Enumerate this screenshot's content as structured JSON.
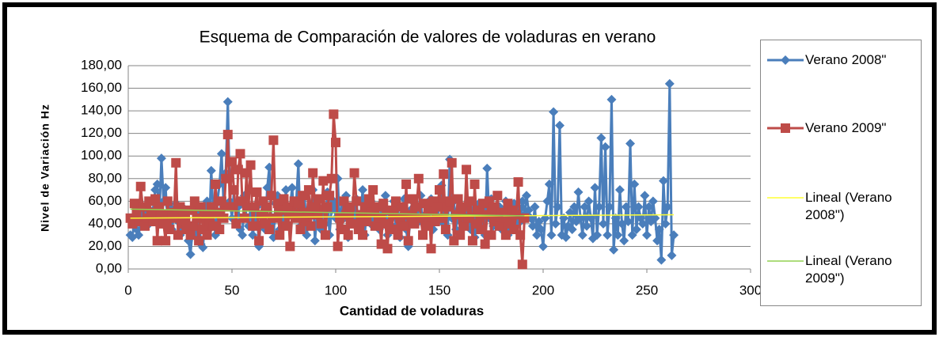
{
  "chart_data": {
    "type": "line",
    "title": "Esquema de Comparación de valores de voladuras en verano",
    "x_label": "Cantidad de voladuras",
    "y_label": "Nivel de Variación  Hz",
    "xlim": [
      0,
      300
    ],
    "xticks": [
      0,
      50,
      100,
      150,
      200,
      250,
      300
    ],
    "ylim": [
      0,
      180
    ],
    "yticks": [
      {
        "value": 0,
        "label": "0,00"
      },
      {
        "value": 20,
        "label": "20,00"
      },
      {
        "value": 40,
        "label": "40,00"
      },
      {
        "value": 60,
        "label": "60,00"
      },
      {
        "value": 80,
        "label": "80,00"
      },
      {
        "value": 100,
        "label": "100,00"
      },
      {
        "value": 120,
        "label": "120,00"
      },
      {
        "value": 140,
        "label": "140,00"
      },
      {
        "value": 160,
        "label": "160,00"
      },
      {
        "value": 180,
        "label": "180,00"
      }
    ],
    "grid": true,
    "legend": "right",
    "x": [
      1,
      2,
      3,
      4,
      5,
      6,
      7,
      8,
      9,
      10,
      11,
      12,
      13,
      14,
      15,
      16,
      17,
      18,
      19,
      20,
      21,
      22,
      23,
      24,
      25,
      26,
      27,
      28,
      29,
      30,
      31,
      32,
      33,
      34,
      35,
      36,
      37,
      38,
      39,
      40,
      41,
      42,
      43,
      44,
      45,
      46,
      47,
      48,
      49,
      50,
      51,
      52,
      53,
      54,
      55,
      56,
      57,
      58,
      59,
      60,
      61,
      62,
      63,
      64,
      65,
      66,
      67,
      68,
      69,
      70,
      71,
      72,
      73,
      74,
      75,
      76,
      77,
      78,
      79,
      80,
      81,
      82,
      83,
      84,
      85,
      86,
      87,
      88,
      89,
      90,
      91,
      92,
      93,
      94,
      95,
      96,
      97,
      98,
      99,
      100,
      101,
      102,
      103,
      104,
      105,
      106,
      107,
      108,
      109,
      110,
      111,
      112,
      113,
      114,
      115,
      116,
      117,
      118,
      119,
      120,
      121,
      122,
      123,
      124,
      125,
      126,
      127,
      128,
      129,
      130,
      131,
      132,
      133,
      134,
      135,
      136,
      137,
      138,
      139,
      140,
      141,
      142,
      143,
      144,
      145,
      146,
      147,
      148,
      149,
      150,
      151,
      152,
      153,
      154,
      155,
      156,
      157,
      158,
      159,
      160,
      161,
      162,
      163,
      164,
      165,
      166,
      167,
      168,
      169,
      170,
      171,
      172,
      173,
      174,
      175,
      176,
      177,
      178,
      179,
      180,
      181,
      182,
      183,
      184,
      185,
      186,
      187,
      188,
      189,
      190,
      191,
      192,
      193,
      194,
      195,
      196,
      197,
      198,
      199,
      200,
      201,
      202,
      203,
      204,
      205,
      206,
      207,
      208,
      209,
      210,
      211,
      212,
      213,
      214,
      215,
      216,
      217,
      218,
      219,
      220,
      221,
      222,
      223,
      224,
      225,
      226,
      227,
      228,
      229,
      230,
      231,
      232,
      233,
      234,
      235,
      236,
      237,
      238,
      239,
      240,
      241,
      242,
      243,
      244,
      245,
      246,
      247,
      248,
      249,
      250,
      251,
      252,
      253,
      254,
      255,
      256,
      257,
      258,
      259,
      260,
      261,
      262,
      263
    ],
    "series": [
      {
        "name": "Verano 2008\"",
        "color": "#4a7ebb",
        "marker": "diamond",
        "values": [
          30,
          28,
          45,
          35,
          30,
          42,
          55,
          50,
          38,
          60,
          45,
          52,
          70,
          75,
          48,
          98,
          60,
          72,
          40,
          55,
          35,
          48,
          58,
          42,
          30,
          55,
          38,
          45,
          25,
          13,
          35,
          40,
          30,
          50,
          22,
          19,
          45,
          60,
          35,
          87,
          50,
          30,
          60,
          75,
          102,
          55,
          85,
          148,
          60,
          45,
          70,
          40,
          55,
          35,
          30,
          65,
          45,
          38,
          55,
          30,
          42,
          55,
          20,
          48,
          60,
          35,
          72,
          90,
          40,
          28,
          58,
          65,
          35,
          50,
          42,
          70,
          38,
          55,
          72,
          45,
          60,
          93,
          38,
          50,
          65,
          30,
          45,
          55,
          70,
          25,
          48,
          62,
          35,
          55,
          40,
          68,
          30,
          52,
          60,
          45,
          80,
          35,
          60,
          45,
          65,
          28,
          50,
          55,
          40,
          62,
          35,
          48,
          70,
          30,
          55,
          42,
          60,
          38,
          52,
          45,
          35,
          58,
          42,
          65,
          30,
          50,
          45,
          60,
          38,
          55,
          28,
          48,
          62,
          35,
          20,
          52,
          45,
          58,
          40,
          55,
          65,
          30,
          48,
          55,
          40,
          62,
          35,
          52,
          45,
          58,
          74,
          40,
          55,
          30,
          97,
          45,
          60,
          35,
          50,
          42,
          55,
          38,
          48,
          60,
          35,
          52,
          28,
          45,
          58,
          40,
          55,
          30,
          89,
          45,
          62,
          38,
          50,
          42,
          55,
          35,
          48,
          60,
          30,
          52,
          45,
          58,
          38,
          55,
          42,
          60,
          48,
          65,
          52,
          45,
          38,
          55,
          30,
          42,
          35,
          20,
          45,
          60,
          75,
          30,
          139,
          40,
          55,
          127,
          30,
          45,
          28,
          38,
          50,
          35,
          55,
          42,
          68,
          45,
          30,
          55,
          38,
          60,
          45,
          27,
          72,
          30,
          55,
          116,
          40,
          108,
          30,
          55,
          150,
          17,
          45,
          30,
          70,
          40,
          25,
          55,
          42,
          111,
          30,
          75,
          35,
          55,
          45,
          40,
          65,
          30,
          55,
          42,
          60,
          45,
          25,
          35,
          8,
          78,
          40,
          55,
          164,
          12,
          30
        ]
      },
      {
        "name": "Verano 2009\"",
        "color": "#be4b48",
        "marker": "square",
        "values": [
          45,
          40,
          58,
          50,
          42,
          73,
          55,
          38,
          45,
          60,
          50,
          42,
          62,
          25,
          55,
          48,
          40,
          25,
          60,
          35,
          50,
          45,
          94,
          30,
          55,
          40,
          48,
          35,
          52,
          30,
          38,
          60,
          45,
          25,
          55,
          35,
          48,
          30,
          42,
          55,
          38,
          75,
          50,
          35,
          60,
          45,
          80,
          119,
          55,
          95,
          70,
          40,
          88,
          102,
          60,
          45,
          85,
          55,
          92,
          38,
          55,
          68,
          25,
          48,
          60,
          40,
          55,
          35,
          65,
          114,
          45,
          58,
          30,
          52,
          62,
          38,
          55,
          20,
          48,
          60,
          45,
          58,
          35,
          65,
          50,
          42,
          70,
          38,
          85,
          55,
          48,
          62,
          40,
          78,
          30,
          55,
          65,
          80,
          137,
          112,
          20,
          45,
          35,
          60,
          48,
          30,
          55,
          40,
          85,
          60,
          35,
          48,
          30,
          55,
          42,
          62,
          50,
          70,
          38,
          55,
          45,
          22,
          58,
          40,
          18,
          52,
          35,
          48,
          60,
          30,
          45,
          55,
          38,
          75,
          25,
          48,
          62,
          40,
          55,
          80,
          45,
          30,
          58,
          38,
          52,
          18,
          60,
          42,
          55,
          70,
          45,
          84,
          35,
          55,
          60,
          94,
          25,
          48,
          62,
          30,
          55,
          38,
          88,
          45,
          60,
          25,
          75,
          40,
          52,
          35,
          58,
          22,
          48,
          60,
          30,
          55,
          42,
          65,
          38,
          50,
          45,
          30,
          58,
          40,
          52,
          35,
          48,
          77,
          30,
          4,
          45,
          null,
          null,
          null,
          null,
          null,
          null,
          null,
          null,
          null,
          null,
          null,
          null,
          null,
          null,
          null,
          null,
          null,
          null,
          null,
          null,
          null,
          null,
          null,
          null,
          null,
          null,
          null,
          null,
          null,
          null,
          null,
          null,
          null,
          null,
          null,
          null,
          null,
          null,
          null,
          null,
          null,
          null,
          null,
          null,
          null,
          null,
          null,
          null,
          null,
          null,
          null,
          null,
          null,
          null,
          null,
          null,
          null,
          null,
          null,
          null,
          null,
          null,
          null,
          null,
          null,
          null,
          null,
          null,
          null,
          null,
          null,
          null
        ]
      },
      {
        "name": "Lineal (Verano 2008\")",
        "color": "#ffff33",
        "x": [
          1,
          263
        ],
        "values": [
          45,
          48
        ]
      },
      {
        "name": "Lineal (Verano 2009\")",
        "color": "#92d050",
        "x": [
          1,
          191
        ],
        "values": [
          53,
          47
        ]
      }
    ]
  }
}
